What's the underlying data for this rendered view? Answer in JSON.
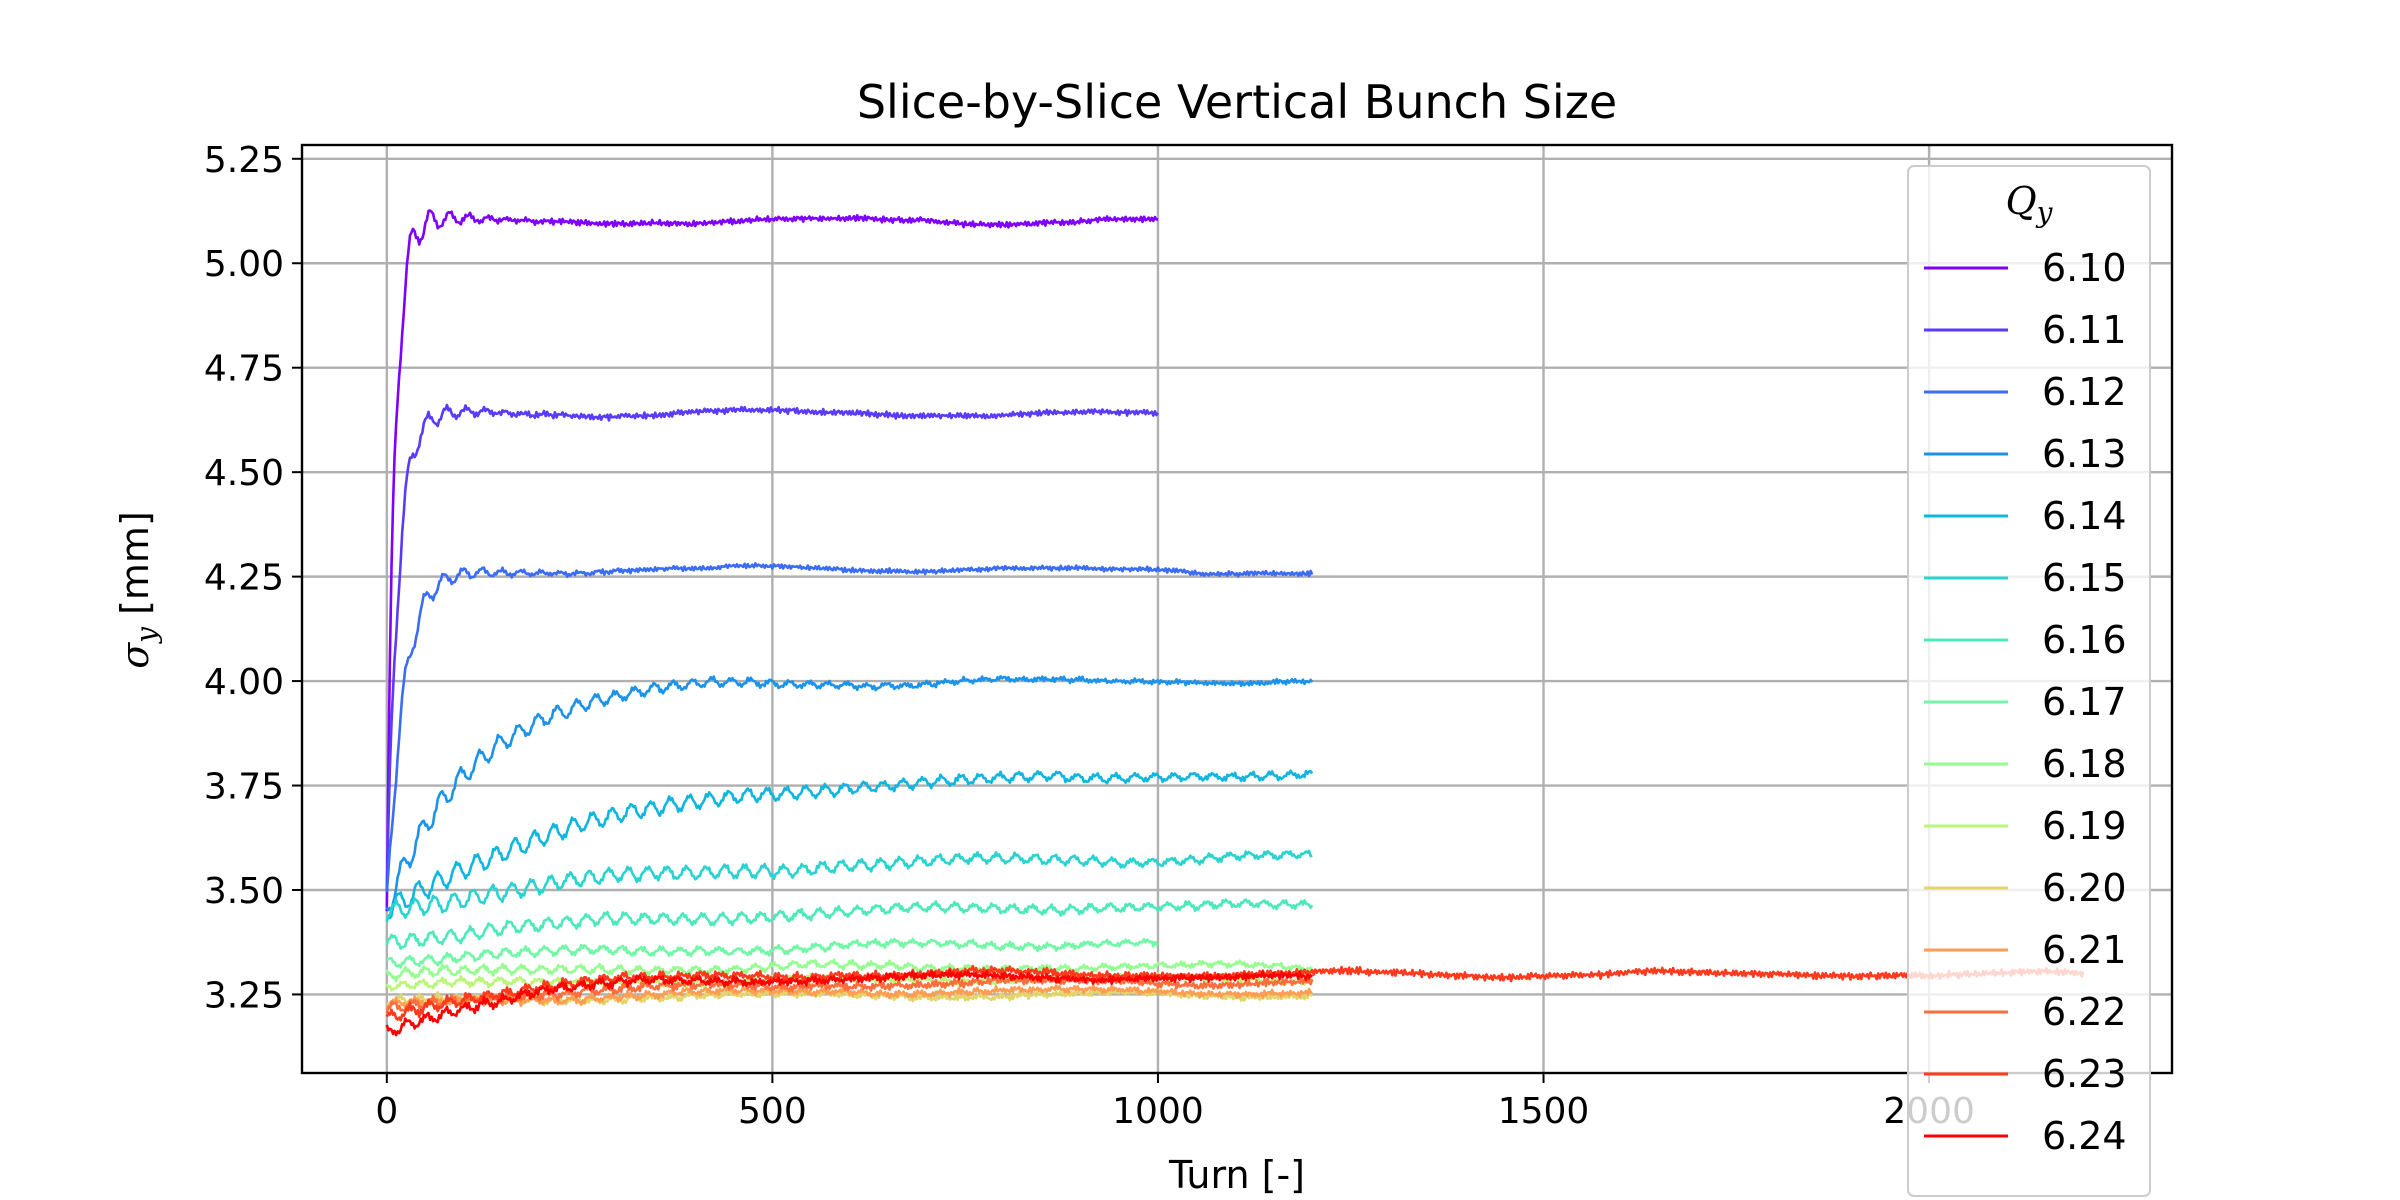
{
  "chart_data": {
    "type": "line",
    "title": "Slice-by-Slice Vertical Bunch Size",
    "xlabel": "Turn [-]",
    "ylabel": "σ_y [mm]",
    "ylabel_parts": {
      "symbol": "σ",
      "subscript": "y",
      "unit": " [mm]"
    },
    "xlim": [
      -110,
      2315
    ],
    "ylim": [
      3.062,
      5.283
    ],
    "xticks": [
      0,
      500,
      1000,
      1500,
      2000
    ],
    "yticks": [
      3.25,
      3.5,
      3.75,
      4.0,
      4.25,
      4.5,
      4.75,
      5.0,
      5.25
    ],
    "xtick_labels": [
      "0",
      "500",
      "1000",
      "1500",
      "2000"
    ],
    "ytick_labels": [
      "3.25",
      "3.50",
      "3.75",
      "4.00",
      "4.25",
      "4.50",
      "4.75",
      "5.00",
      "5.25"
    ],
    "grid": true,
    "legend": {
      "title_symbol": "Q",
      "title_subscript": "y",
      "placement": "right"
    },
    "series": [
      {
        "name": "6.10",
        "color": "#7f00ff",
        "end": 1000,
        "start": 3.45,
        "final": 5.1,
        "peak": 5.18,
        "tau": 10,
        "osc": 0.08,
        "ripple": 0.005
      },
      {
        "name": "6.11",
        "color": "#5a3bfb",
        "end": 1000,
        "start": 3.45,
        "final": 4.64,
        "peak": 4.65,
        "tau": 14,
        "osc": 0.05,
        "ripple": 0.005
      },
      {
        "name": "6.12",
        "color": "#3a6cf5",
        "end": 1200,
        "start": 3.45,
        "final": 4.265,
        "peak": 4.27,
        "tau": 22,
        "osc": 0.04,
        "ripple": 0.004
      },
      {
        "name": "6.13",
        "color": "#1c93eb",
        "end": 1200,
        "start": 3.45,
        "final": 4.0,
        "peak": 4.01,
        "tau": 110,
        "osc": 0.03,
        "ripple": 0.004
      },
      {
        "name": "6.14",
        "color": "#10b6de",
        "end": 1200,
        "start": 3.45,
        "final": 3.78,
        "peak": 3.78,
        "tau": 260,
        "osc": 0.025,
        "ripple": 0.004
      },
      {
        "name": "6.15",
        "color": "#2ad3cf",
        "end": 1200,
        "start": 3.45,
        "final": 3.585,
        "peak": 3.585,
        "tau": 350,
        "osc": 0.02,
        "ripple": 0.004
      },
      {
        "name": "6.16",
        "color": "#4de8bb",
        "end": 1200,
        "start": 3.38,
        "final": 3.47,
        "peak": 3.47,
        "tau": 450,
        "osc": 0.015,
        "ripple": 0.004
      },
      {
        "name": "6.17",
        "color": "#72f7a6",
        "end": 1000,
        "start": 3.33,
        "final": 3.38,
        "peak": 3.38,
        "tau": 450,
        "osc": 0.01,
        "ripple": 0.004
      },
      {
        "name": "6.18",
        "color": "#96fe91",
        "end": 1200,
        "start": 3.3,
        "final": 3.32,
        "peak": 3.32,
        "tau": 400,
        "osc": 0.01,
        "ripple": 0.004
      },
      {
        "name": "6.19",
        "color": "#bbf67a",
        "end": 1200,
        "start": 3.27,
        "final": 3.29,
        "peak": 3.29,
        "tau": 400,
        "osc": 0.008,
        "ripple": 0.004
      },
      {
        "name": "6.20",
        "color": "#e2d66a",
        "end": 1200,
        "start": 3.23,
        "final": 3.25,
        "peak": 3.25,
        "tau": 300,
        "osc": 0.008,
        "ripple": 0.005
      },
      {
        "name": "6.21",
        "color": "#ff9d52",
        "end": 1200,
        "start": 3.22,
        "final": 3.26,
        "peak": 3.26,
        "tau": 300,
        "osc": 0.008,
        "ripple": 0.005
      },
      {
        "name": "6.22",
        "color": "#ff6e3c",
        "end": 1200,
        "start": 3.21,
        "final": 3.28,
        "peak": 3.28,
        "tau": 200,
        "osc": 0.01,
        "ripple": 0.006
      },
      {
        "name": "6.23",
        "color": "#ff3a1d",
        "end": 2200,
        "start": 3.19,
        "final": 3.3,
        "peak": 3.3,
        "tau": 150,
        "osc": 0.012,
        "ripple": 0.006
      },
      {
        "name": "6.24",
        "color": "#ff0000",
        "end": 1200,
        "start": 3.16,
        "final": 3.29,
        "peak": 3.29,
        "tau": 150,
        "osc": 0.012,
        "ripple": 0.006
      }
    ]
  }
}
